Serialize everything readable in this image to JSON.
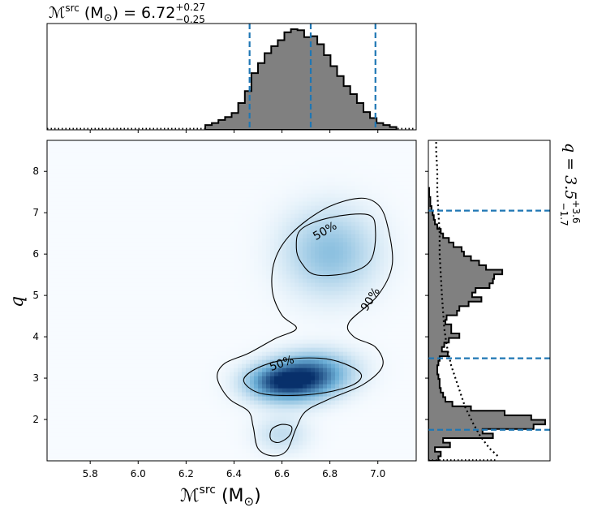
{
  "chart_data": {
    "type": "scatter",
    "description_kind": "corner-plot",
    "top_title": {
      "prefix": "ℳ",
      "sup": "src",
      "mid": " (M",
      "sun": "⊙",
      "eq": ") = 6.72",
      "plus": "+0.27",
      "minus": "−0.25"
    },
    "right_title": {
      "prefix": "q = 3.5",
      "plus": "+3.6",
      "minus": "−1.7"
    },
    "xlabel": {
      "prefix": "ℳ",
      "sup": "src",
      "mid": " (M",
      "sun": "⊙",
      "end": ")"
    },
    "ylabel": "q",
    "xlim": [
      5.62,
      7.16
    ],
    "ylim": [
      1.0,
      8.75
    ],
    "xticks": [
      "5.8",
      "6.0",
      "6.2",
      "6.4",
      "6.6",
      "6.8",
      "7.0"
    ],
    "xtick_values": [
      5.8,
      6.0,
      6.2,
      6.4,
      6.6,
      6.8,
      7.0
    ],
    "yticks": [
      "2",
      "3",
      "4",
      "5",
      "6",
      "7",
      "8"
    ],
    "ytick_values": [
      2,
      3,
      4,
      5,
      6,
      7,
      8
    ],
    "median_lines": {
      "mchirp": [
        6.465,
        6.72,
        6.99
      ],
      "q": [
        1.75,
        3.48,
        7.05
      ]
    },
    "mchirp_hist": {
      "bin_edges_start": 6.28,
      "bin_width": 0.0275,
      "density": [
        0.04,
        0.06,
        0.09,
        0.12,
        0.16,
        0.26,
        0.38,
        0.56,
        0.66,
        0.76,
        0.83,
        0.89,
        0.97,
        1.0,
        0.99,
        0.92,
        0.93,
        0.85,
        0.74,
        0.63,
        0.53,
        0.43,
        0.35,
        0.26,
        0.17,
        0.11,
        0.06,
        0.04,
        0.02
      ],
      "prior_level": 0.008
    },
    "q_hist": {
      "bin_edges_start": 1.0,
      "bin_width": 0.11,
      "density": [
        0.08,
        0.1,
        0.05,
        0.18,
        0.12,
        0.55,
        0.46,
        0.9,
        1.0,
        0.88,
        0.65,
        0.36,
        0.2,
        0.14,
        0.12,
        0.1,
        0.09,
        0.09,
        0.08,
        0.07,
        0.07,
        0.08,
        0.09,
        0.16,
        0.11,
        0.13,
        0.17,
        0.26,
        0.19,
        0.19,
        0.14,
        0.15,
        0.24,
        0.26,
        0.34,
        0.45,
        0.37,
        0.4,
        0.52,
        0.55,
        0.56,
        0.63,
        0.49,
        0.43,
        0.36,
        0.3,
        0.28,
        0.21,
        0.17,
        0.12,
        0.1,
        0.07,
        0.05,
        0.04,
        0.03,
        0.02,
        0.01,
        0.01,
        0.0,
        0.0
      ],
      "prior": [
        [
          1.12,
          0.59
        ],
        [
          1.3,
          0.52
        ],
        [
          1.6,
          0.44
        ],
        [
          1.9,
          0.38
        ],
        [
          2.3,
          0.31
        ],
        [
          2.8,
          0.25
        ],
        [
          3.3,
          0.19
        ],
        [
          3.8,
          0.15
        ],
        [
          4.2,
          0.13
        ],
        [
          4.6,
          0.12
        ],
        [
          5.0,
          0.11
        ],
        [
          5.5,
          0.1
        ],
        [
          6.0,
          0.09
        ],
        [
          6.5,
          0.09
        ],
        [
          7.0,
          0.08
        ],
        [
          7.5,
          0.07
        ],
        [
          8.0,
          0.07
        ],
        [
          8.5,
          0.06
        ],
        [
          8.75,
          0.06
        ]
      ]
    },
    "density_modes": [
      {
        "x": 6.69,
        "y": 3.02,
        "sx": 0.11,
        "sy": 0.34,
        "rho": 0.18,
        "w": 1.0
      },
      {
        "x": 6.57,
        "y": 2.92,
        "sx": 0.08,
        "sy": 0.25,
        "rho": 0.0,
        "w": 0.45
      },
      {
        "x": 6.8,
        "y": 6.05,
        "sx": 0.12,
        "sy": 0.65,
        "rho": 0.0,
        "w": 0.32
      },
      {
        "x": 6.6,
        "y": 1.65,
        "sx": 0.07,
        "sy": 0.28,
        "rho": 0.0,
        "w": 0.14
      }
    ],
    "contours": [
      {
        "label": "50%",
        "label_at": [
          6.6,
          3.35
        ],
        "label_angle": -20,
        "points": [
          [
            6.44,
            2.95
          ],
          [
            6.5,
            3.25
          ],
          [
            6.62,
            3.45
          ],
          [
            6.76,
            3.48
          ],
          [
            6.86,
            3.35
          ],
          [
            6.93,
            3.1
          ],
          [
            6.9,
            2.85
          ],
          [
            6.78,
            2.65
          ],
          [
            6.62,
            2.58
          ],
          [
            6.5,
            2.65
          ]
        ]
      },
      {
        "label": "50%",
        "label_at": [
          6.78,
          6.55
        ],
        "label_angle": -30,
        "points": [
          [
            6.66,
            6.15
          ],
          [
            6.68,
            6.6
          ],
          [
            6.8,
            6.88
          ],
          [
            6.96,
            6.95
          ],
          [
            6.99,
            6.55
          ],
          [
            6.97,
            5.85
          ],
          [
            6.88,
            5.55
          ],
          [
            6.74,
            5.5
          ],
          [
            6.68,
            5.8
          ]
        ]
      },
      {
        "label": "",
        "label_at": [
          6.6,
          1.65
        ],
        "label_angle": 0,
        "points": [
          [
            6.55,
            1.6
          ],
          [
            6.56,
            1.78
          ],
          [
            6.6,
            1.88
          ],
          [
            6.64,
            1.82
          ],
          [
            6.63,
            1.6
          ],
          [
            6.59,
            1.45
          ],
          [
            6.56,
            1.48
          ]
        ]
      },
      {
        "label": "90%",
        "label_at": [
          6.97,
          4.9
        ],
        "label_angle": -58,
        "points": [
          [
            6.33,
            3.0
          ],
          [
            6.36,
            3.35
          ],
          [
            6.46,
            3.6
          ],
          [
            6.57,
            3.95
          ],
          [
            6.66,
            4.2
          ],
          [
            6.6,
            4.52
          ],
          [
            6.56,
            5.1
          ],
          [
            6.57,
            5.85
          ],
          [
            6.64,
            6.5
          ],
          [
            6.78,
            7.1
          ],
          [
            6.92,
            7.35
          ],
          [
            7.0,
            7.2
          ],
          [
            7.04,
            6.7
          ],
          [
            7.06,
            5.75
          ],
          [
            7.0,
            5.0
          ],
          [
            6.88,
            4.35
          ],
          [
            6.9,
            4.0
          ],
          [
            6.99,
            3.75
          ],
          [
            7.02,
            3.3
          ],
          [
            6.94,
            2.85
          ],
          [
            6.8,
            2.5
          ],
          [
            6.7,
            2.2
          ],
          [
            6.66,
            1.8
          ],
          [
            6.62,
            1.25
          ],
          [
            6.56,
            1.12
          ],
          [
            6.5,
            1.3
          ],
          [
            6.48,
            1.82
          ],
          [
            6.46,
            2.2
          ],
          [
            6.38,
            2.5
          ]
        ]
      }
    ],
    "colors": {
      "hist_fill": "#808080",
      "median_line": "#1f77b4",
      "cmap_low": "#f7fbff",
      "cmap_high": "#08306b"
    },
    "grid": false
  }
}
